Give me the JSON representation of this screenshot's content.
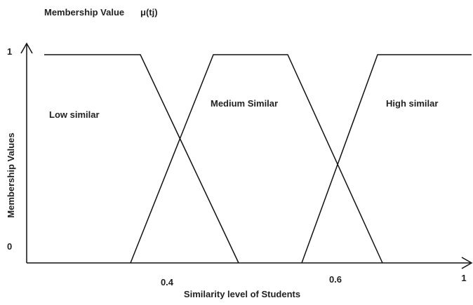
{
  "header": {
    "title": "Membership Value",
    "symbol": "μ(tj)"
  },
  "y_axis": {
    "label": "Membership Values",
    "ticks": [
      "1",
      "0"
    ]
  },
  "x_axis": {
    "label": "Similarity level of Students",
    "ticks": [
      "0.4",
      "0.6",
      "1"
    ]
  },
  "sets": [
    "Low similar",
    "Medium Similar",
    "High similar"
  ]
}
